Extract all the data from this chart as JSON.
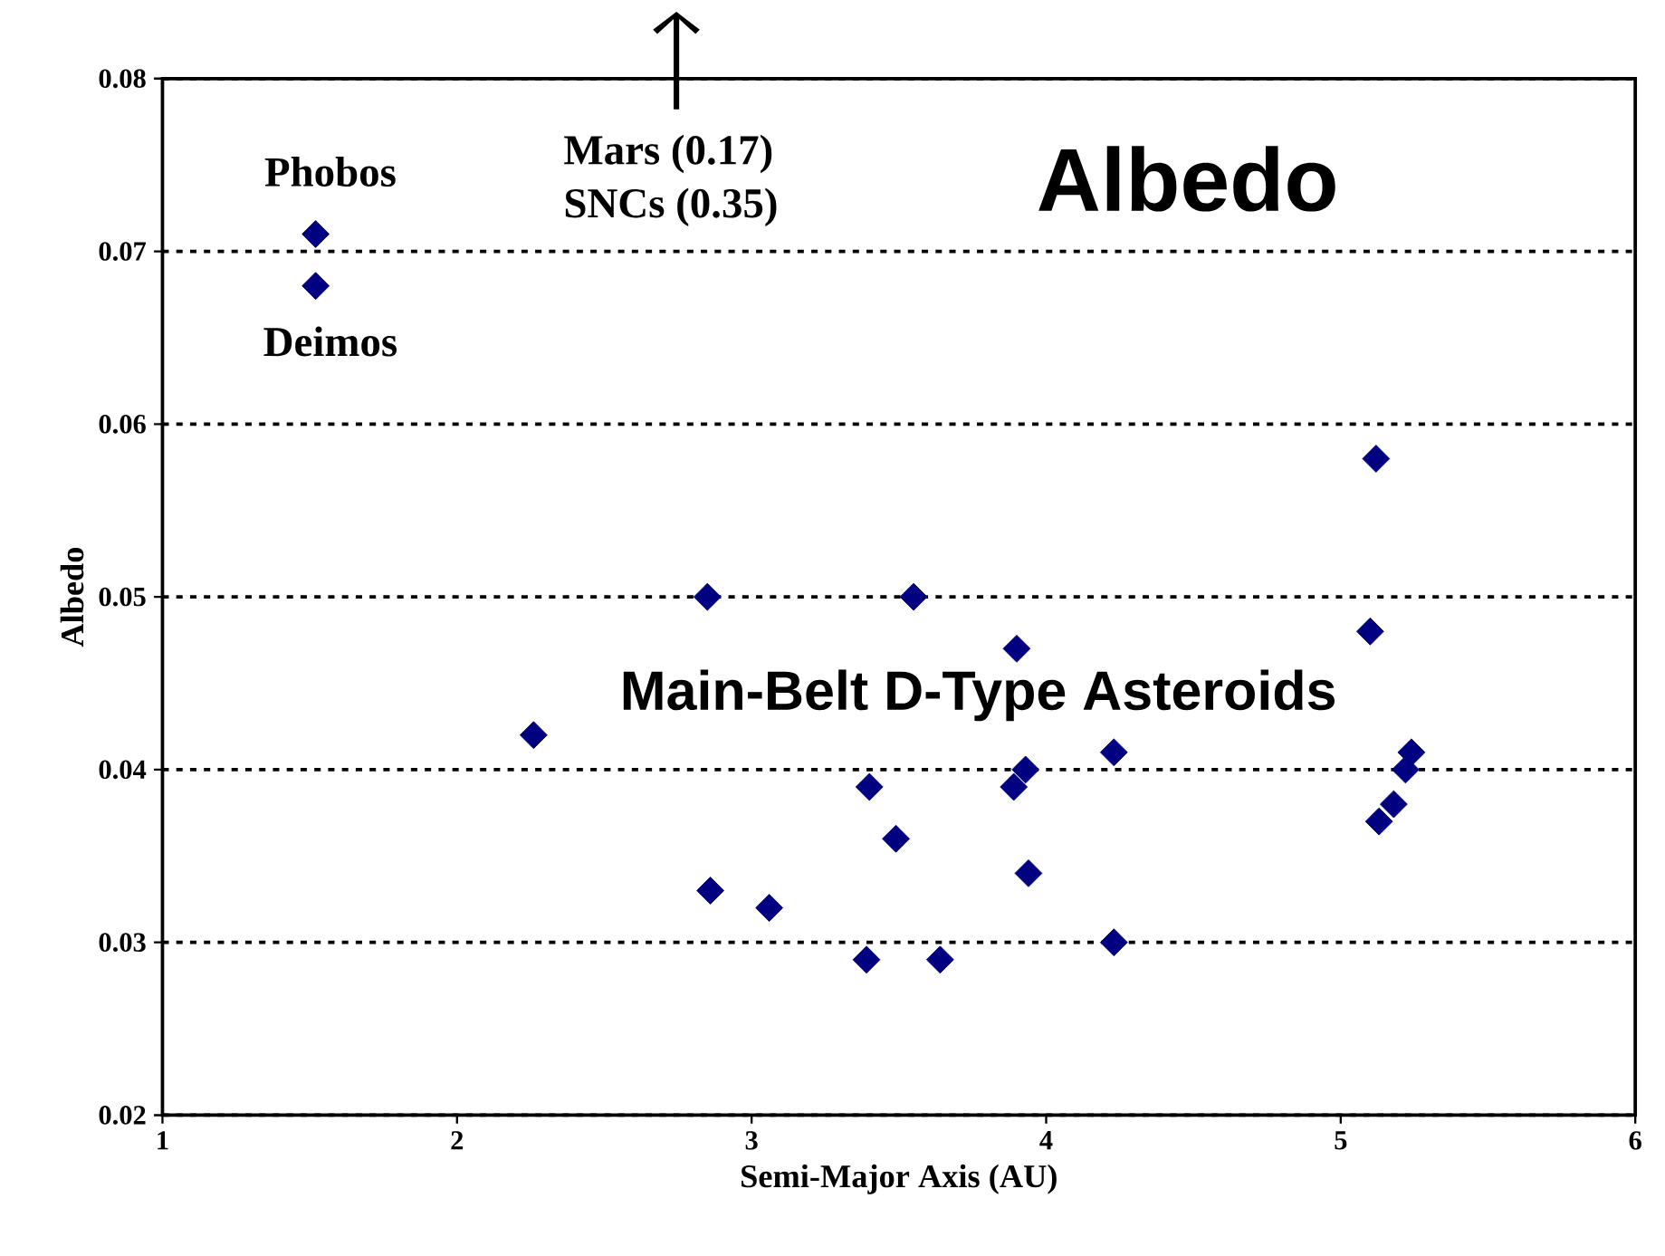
{
  "chart_data": {
    "type": "scatter",
    "title": "Albedo",
    "xlabel": "Semi-Major Axis (AU)",
    "ylabel": "Albedo",
    "xlim": [
      1,
      6
    ],
    "xticks": [
      1,
      2,
      3,
      4,
      5,
      6
    ],
    "ylim": [
      0.02,
      0.08
    ],
    "yticks": [
      0.02,
      0.03,
      0.04,
      0.05,
      0.06,
      0.07,
      0.08
    ],
    "grid": "y",
    "marker": "diamond",
    "series": [
      {
        "color": "#000080",
        "x": [
          1.52,
          1.52,
          2.26,
          2.85,
          2.86,
          3.06,
          3.4,
          3.39,
          3.49,
          3.55,
          3.64,
          3.9,
          3.89,
          3.93,
          3.94,
          4.23,
          4.23,
          5.12,
          5.1,
          5.24,
          5.22,
          5.18,
          5.13
        ],
        "values": [
          0.071,
          0.068,
          0.042,
          0.05,
          0.033,
          0.032,
          0.039,
          0.029,
          0.036,
          0.05,
          0.029,
          0.047,
          0.039,
          0.04,
          0.034,
          0.041,
          0.03,
          0.058,
          0.048,
          0.041,
          0.04,
          0.038,
          0.037
        ]
      }
    ],
    "annotations": [
      {
        "text": "Phobos",
        "x": 1.52,
        "y": 0.071
      },
      {
        "text": "Deimos",
        "x": 1.52,
        "y": 0.068
      },
      "Mars (0.17)",
      "SNCs (0.35)",
      "Main-Belt D-Type Asteroids"
    ]
  }
}
